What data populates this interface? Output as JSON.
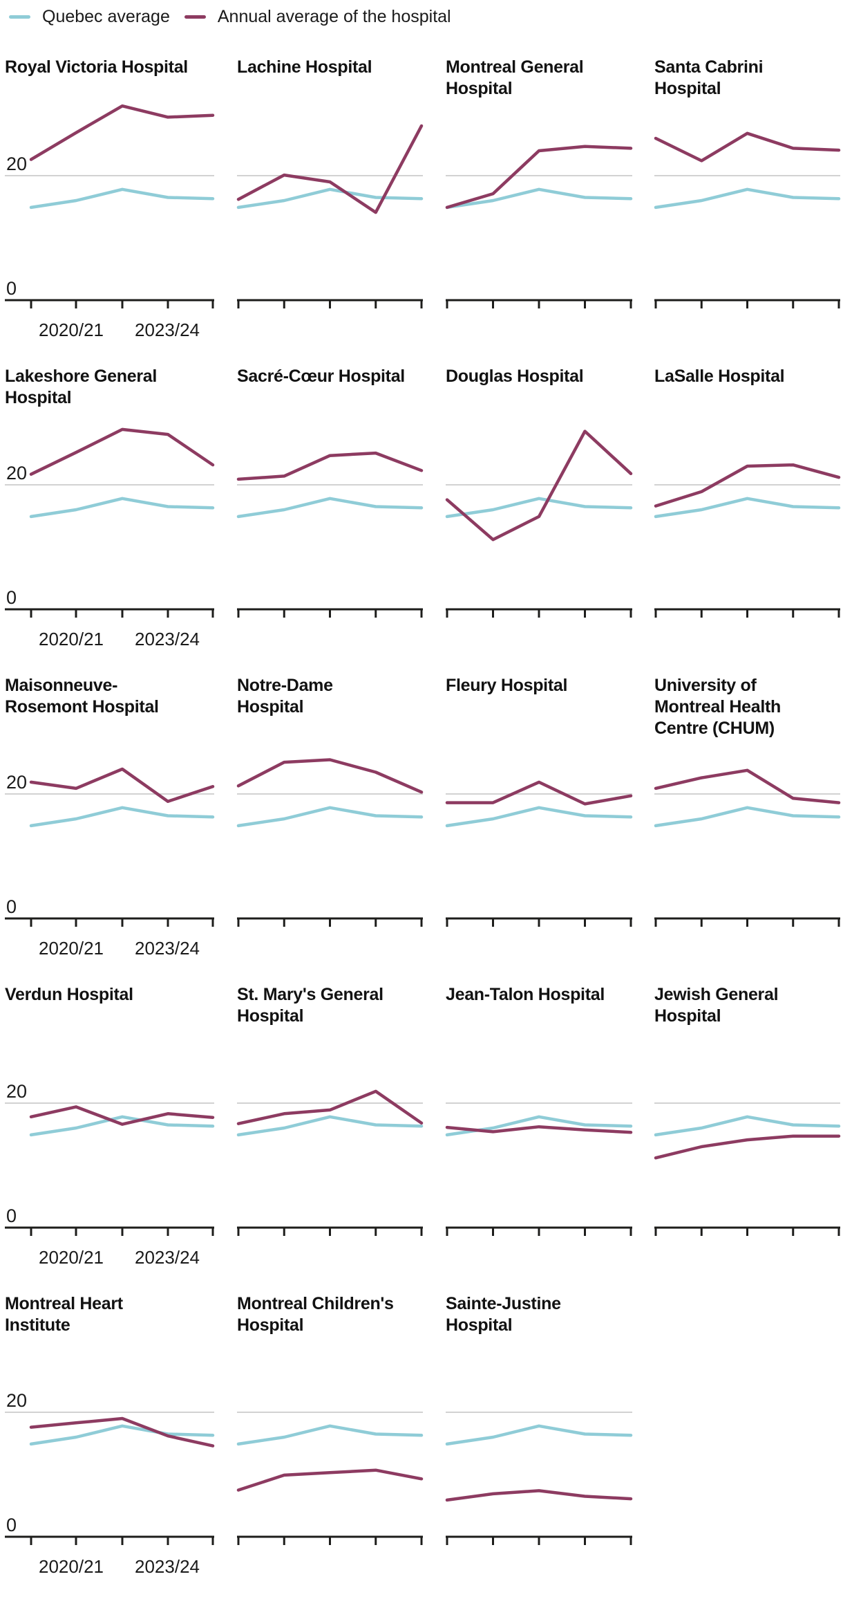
{
  "legend": {
    "items": [
      {
        "label": "Quebec average",
        "color": "#8fccd7"
      },
      {
        "label": "Annual average of the hospital",
        "color": "#8d3b61"
      }
    ]
  },
  "colors": {
    "quebec": "#8fccd7",
    "hospital": "#8d3b61",
    "gridline": "#d2d2d2",
    "axis": "#1d1d1b",
    "text": "#1a1a1a"
  },
  "y_axis_labels": {
    "twenty": "20",
    "zero": "0"
  },
  "x_axis_labels": {
    "first": "2020/21",
    "last": "2023/24"
  },
  "chart_data": {
    "type": "line",
    "points_per_series": 5,
    "x": [
      1,
      2,
      3,
      4,
      5
    ],
    "x_axis": {
      "visible_tick_labels": [
        "2020/21",
        "2023/24"
      ],
      "ticks_per_panel": 5
    },
    "y_axis": {
      "ticks": [
        0,
        20
      ],
      "gridline_at": 20,
      "ylim": [
        0,
        32
      ],
      "grid": "single-reference-line"
    },
    "legend_position": "top-left",
    "quebec_average": {
      "name": "Quebec average",
      "color": "#8fccd7",
      "values": [
        14.9,
        16.0,
        17.8,
        16.5,
        16.3
      ]
    },
    "hospital_series_color": "#8d3b61",
    "hospitals": [
      {
        "name": "Royal Victoria Hospital",
        "title_lines": [
          "Royal Victoria Hospital"
        ],
        "values": [
          22.6,
          26.9,
          31.2,
          29.4,
          29.7
        ]
      },
      {
        "name": "Lachine Hospital",
        "title_lines": [
          "Lachine Hospital"
        ],
        "values": [
          16.2,
          20.1,
          19.0,
          14.1,
          28.0
        ]
      },
      {
        "name": "Montreal General Hospital",
        "title_lines": [
          "Montreal General",
          "Hospital"
        ],
        "values": [
          14.9,
          17.1,
          24.0,
          24.7,
          24.4
        ]
      },
      {
        "name": "Santa Cabrini Hospital",
        "title_lines": [
          "Santa Cabrini",
          "Hospital"
        ],
        "values": [
          26.0,
          22.4,
          26.8,
          24.4,
          24.1
        ]
      },
      {
        "name": "Lakeshore General Hospital",
        "title_lines": [
          "Lakeshore General",
          "Hospital"
        ],
        "values": [
          21.7,
          25.2,
          28.9,
          28.1,
          23.2
        ]
      },
      {
        "name": "Sacré-Cœur Hospital",
        "title_lines": [
          "Sacré-Cœur Hospital"
        ],
        "values": [
          20.9,
          21.4,
          24.7,
          25.1,
          22.3
        ]
      },
      {
        "name": "Douglas Hospital",
        "title_lines": [
          "Douglas Hospital"
        ],
        "values": [
          17.6,
          11.2,
          14.9,
          28.6,
          21.8
        ]
      },
      {
        "name": "LaSalle Hospital",
        "title_lines": [
          "LaSalle Hospital"
        ],
        "values": [
          16.6,
          18.9,
          23.0,
          23.2,
          21.2
        ]
      },
      {
        "name": "Maisonneuve-Rosemont Hospital",
        "title_lines": [
          "Maisonneuve-",
          "Rosemont Hospital"
        ],
        "values": [
          21.9,
          20.9,
          24.0,
          18.8,
          21.2
        ]
      },
      {
        "name": "Notre-Dame Hospital",
        "title_lines": [
          "Notre-Dame",
          "Hospital"
        ],
        "values": [
          21.3,
          25.1,
          25.5,
          23.5,
          20.3
        ]
      },
      {
        "name": "Fleury Hospital",
        "title_lines": [
          "Fleury Hospital"
        ],
        "values": [
          18.6,
          18.6,
          21.9,
          18.4,
          19.7
        ]
      },
      {
        "name": "University of Montreal Health Centre (CHUM)",
        "title_lines": [
          "University of",
          "Montreal Health",
          "Centre (CHUM)"
        ],
        "values": [
          20.9,
          22.6,
          23.8,
          19.3,
          18.6
        ]
      },
      {
        "name": "Verdun Hospital",
        "title_lines": [
          "Verdun Hospital"
        ],
        "values": [
          17.8,
          19.4,
          16.6,
          18.3,
          17.7
        ]
      },
      {
        "name": "St. Mary's General Hospital",
        "title_lines": [
          "St. Mary's General",
          "Hospital"
        ],
        "values": [
          16.7,
          18.3,
          18.9,
          21.9,
          16.8
        ]
      },
      {
        "name": "Jean-Talon Hospital",
        "title_lines": [
          "Jean-Talon Hospital"
        ],
        "values": [
          16.1,
          15.4,
          16.2,
          15.7,
          15.3
        ]
      },
      {
        "name": "Jewish General Hospital",
        "title_lines": [
          "Jewish General",
          "Hospital"
        ],
        "values": [
          11.2,
          13.0,
          14.1,
          14.7,
          14.7
        ]
      },
      {
        "name": "Montreal Heart Institute",
        "title_lines": [
          "Montreal Heart",
          "Institute"
        ],
        "values": [
          17.6,
          18.3,
          19.0,
          16.2,
          14.6
        ]
      },
      {
        "name": "Montreal Children's Hospital",
        "title_lines": [
          "Montreal Children's",
          "Hospital"
        ],
        "values": [
          7.5,
          9.9,
          10.3,
          10.7,
          9.3
        ]
      },
      {
        "name": "Sainte-Justine Hospital",
        "title_lines": [
          "Sainte-Justine",
          "Hospital"
        ],
        "values": [
          5.9,
          6.9,
          7.4,
          6.5,
          6.1
        ]
      }
    ]
  }
}
